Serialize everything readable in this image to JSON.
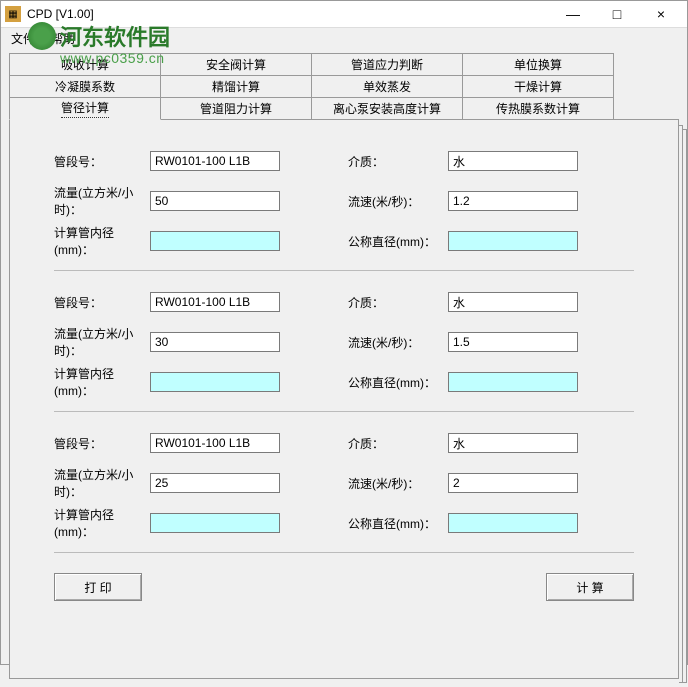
{
  "window": {
    "title": "CPD [V1.00]",
    "minimize": "—",
    "maximize": "□",
    "close": "×"
  },
  "menubar": {
    "file": "文件",
    "help": "帮助"
  },
  "watermark": {
    "text": "河东软件园",
    "url": "www.pc0359.cn"
  },
  "tabs": {
    "row1": [
      "吸收计算",
      "安全阀计算",
      "管道应力判断",
      "单位换算"
    ],
    "row2": [
      "冷凝膜系数",
      "精馏计算",
      "单效蒸发",
      "干燥计算"
    ],
    "row3": [
      "管径计算",
      "管道阻力计算",
      "离心泵安装高度计算",
      "传热膜系数计算"
    ]
  },
  "labels": {
    "segment": "管段号：",
    "medium": "介质：",
    "flow": "流量(立方米/小时)：",
    "velocity": "流速(米/秒)：",
    "innerDiameter": "计算管内径(mm)：",
    "nominalDiameter": "公称直径(mm)："
  },
  "sections": [
    {
      "segment": "RW0101-100 L1B",
      "medium": "水",
      "flow": "50",
      "velocity": "1.2",
      "innerDiameter": "",
      "nominalDiameter": ""
    },
    {
      "segment": "RW0101-100 L1B",
      "medium": "水",
      "flow": "30",
      "velocity": "1.5",
      "innerDiameter": "",
      "nominalDiameter": ""
    },
    {
      "segment": "RW0101-100 L1B",
      "medium": "水",
      "flow": "25",
      "velocity": "2",
      "innerDiameter": "",
      "nominalDiameter": ""
    }
  ],
  "buttons": {
    "print": "打 印",
    "calculate": "计 算"
  },
  "colors": {
    "cyan_bg": "#c0ffff",
    "window_bg": "#f0f0f0",
    "border": "#999999"
  }
}
